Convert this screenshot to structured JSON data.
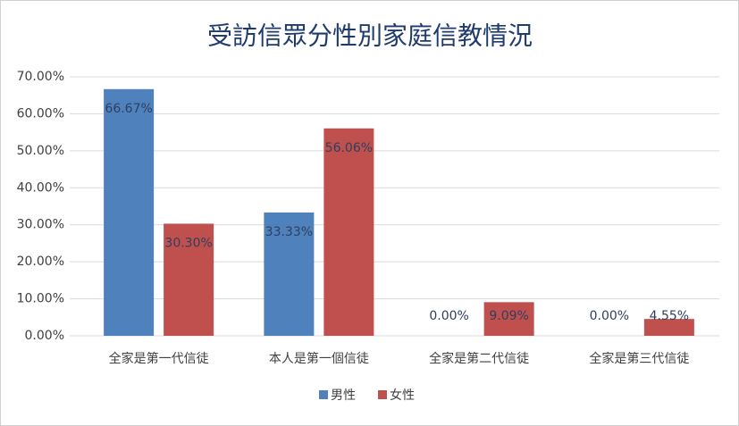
{
  "chart_data": {
    "type": "bar",
    "title": "受訪信眾分性別家庭信教情況",
    "categories": [
      "全家是第一代信徒",
      "本人是第一個信徒",
      "全家是第二代信徒",
      "全家是第三代信徒"
    ],
    "series": [
      {
        "name": "男性",
        "color": "#4f81bd",
        "values": [
          66.67,
          33.33,
          0,
          0
        ],
        "value_labels": [
          "66.67%",
          "33.33%",
          "0.00%",
          "0.00%"
        ]
      },
      {
        "name": "女性",
        "color": "#c0504d",
        "values": [
          30.3,
          56.06,
          9.09,
          4.55
        ],
        "value_labels": [
          "30.30%",
          "56.06%",
          "9.09%",
          "4.55%"
        ]
      }
    ],
    "ylim": [
      0,
      70
    ],
    "yticks": [
      {
        "value": 0,
        "label": "0.00%"
      },
      {
        "value": 10,
        "label": "10.00%"
      },
      {
        "value": 20,
        "label": "20.00%"
      },
      {
        "value": 30,
        "label": "30.00%"
      },
      {
        "value": 40,
        "label": "40.00%"
      },
      {
        "value": 50,
        "label": "50.00%"
      },
      {
        "value": 60,
        "label": "60.00%"
      },
      {
        "value": 70,
        "label": "70.00%"
      }
    ],
    "grid": true,
    "legend": "bottom"
  }
}
